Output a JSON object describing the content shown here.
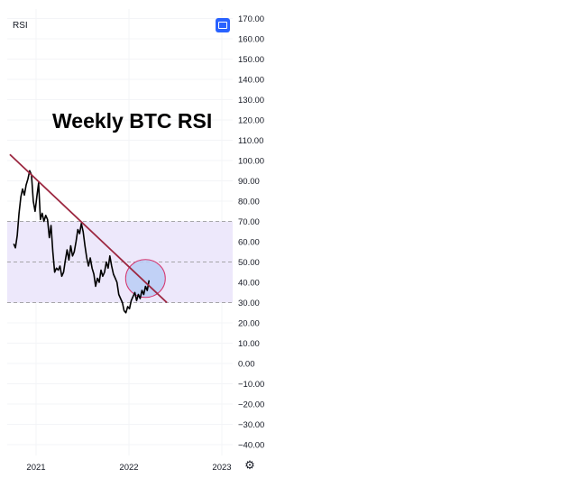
{
  "indicator": {
    "label": "RSI"
  },
  "annotation": {
    "title": "Weekly BTC RSI"
  },
  "icons": {
    "maximize": "maximize-icon",
    "settings": "gear-icon"
  },
  "colors": {
    "rsi_line": "#000000",
    "trendline": "#9c2740",
    "band_fill": "#ede8fb",
    "highlight_fill": "#b9cdf5",
    "highlight_stroke": "#d6336c",
    "accent": "#2962ff"
  },
  "chart_data": {
    "type": "line",
    "title": "Weekly BTC RSI",
    "ylabel": "",
    "xlabel": "",
    "ylim": [
      -45,
      172
    ],
    "y_ticks": [
      "170.00",
      "160.00",
      "150.00",
      "140.00",
      "130.00",
      "120.00",
      "110.00",
      "100.00",
      "90.00",
      "80.00",
      "70.00",
      "60.00",
      "50.00",
      "40.00",
      "30.00",
      "20.00",
      "10.00",
      "0.00",
      "−10.00",
      "−20.00",
      "−30.00",
      "−40.00"
    ],
    "x_ticks": [
      "2021",
      "2022",
      "2023"
    ],
    "grid": true,
    "bands": [
      {
        "from": 30,
        "to": 70,
        "label": ""
      }
    ],
    "reference_lines": [
      30,
      50,
      70
    ],
    "series": [
      {
        "values": [
          {
            "x": "2020-10-05",
            "y": 59
          },
          {
            "x": "2020-10-12",
            "y": 57
          },
          {
            "x": "2020-10-19",
            "y": 63
          },
          {
            "x": "2020-10-26",
            "y": 74
          },
          {
            "x": "2020-11-02",
            "y": 82
          },
          {
            "x": "2020-11-09",
            "y": 86
          },
          {
            "x": "2020-11-16",
            "y": 83
          },
          {
            "x": "2020-11-23",
            "y": 88
          },
          {
            "x": "2020-11-30",
            "y": 91
          },
          {
            "x": "2020-12-07",
            "y": 95
          },
          {
            "x": "2020-12-14",
            "y": 93
          },
          {
            "x": "2020-12-21",
            "y": 80
          },
          {
            "x": "2020-12-28",
            "y": 75
          },
          {
            "x": "2021-01-04",
            "y": 82
          },
          {
            "x": "2021-01-11",
            "y": 89
          },
          {
            "x": "2021-01-18",
            "y": 71
          },
          {
            "x": "2021-01-25",
            "y": 74
          },
          {
            "x": "2021-02-01",
            "y": 70
          },
          {
            "x": "2021-02-08",
            "y": 73
          },
          {
            "x": "2021-02-15",
            "y": 71
          },
          {
            "x": "2021-02-22",
            "y": 62
          },
          {
            "x": "2021-03-01",
            "y": 68
          },
          {
            "x": "2021-03-08",
            "y": 55
          },
          {
            "x": "2021-03-15",
            "y": 45
          },
          {
            "x": "2021-03-22",
            "y": 47
          },
          {
            "x": "2021-03-29",
            "y": 46
          },
          {
            "x": "2021-04-05",
            "y": 48
          },
          {
            "x": "2021-04-12",
            "y": 43
          },
          {
            "x": "2021-04-19",
            "y": 45
          },
          {
            "x": "2021-04-26",
            "y": 51
          },
          {
            "x": "2021-05-03",
            "y": 56
          },
          {
            "x": "2021-05-10",
            "y": 51
          },
          {
            "x": "2021-05-17",
            "y": 58
          },
          {
            "x": "2021-05-24",
            "y": 53
          },
          {
            "x": "2021-05-31",
            "y": 55
          },
          {
            "x": "2021-06-07",
            "y": 60
          },
          {
            "x": "2021-06-14",
            "y": 66
          },
          {
            "x": "2021-06-21",
            "y": 64
          },
          {
            "x": "2021-06-28",
            "y": 69
          },
          {
            "x": "2021-07-05",
            "y": 65
          },
          {
            "x": "2021-07-12",
            "y": 58
          },
          {
            "x": "2021-07-19",
            "y": 52
          },
          {
            "x": "2021-07-26",
            "y": 48
          },
          {
            "x": "2021-08-02",
            "y": 52
          },
          {
            "x": "2021-08-09",
            "y": 47
          },
          {
            "x": "2021-08-16",
            "y": 44
          },
          {
            "x": "2021-08-23",
            "y": 38
          },
          {
            "x": "2021-08-30",
            "y": 42
          },
          {
            "x": "2021-09-06",
            "y": 40
          },
          {
            "x": "2021-09-13",
            "y": 46
          },
          {
            "x": "2021-09-20",
            "y": 43
          },
          {
            "x": "2021-09-27",
            "y": 45
          },
          {
            "x": "2021-10-04",
            "y": 50
          },
          {
            "x": "2021-10-11",
            "y": 47
          },
          {
            "x": "2021-10-18",
            "y": 53
          },
          {
            "x": "2021-10-25",
            "y": 48
          },
          {
            "x": "2021-11-01",
            "y": 44
          },
          {
            "x": "2021-11-08",
            "y": 42
          },
          {
            "x": "2021-11-15",
            "y": 40
          },
          {
            "x": "2021-11-22",
            "y": 34
          },
          {
            "x": "2021-11-29",
            "y": 32
          },
          {
            "x": "2021-12-06",
            "y": 30
          },
          {
            "x": "2021-12-13",
            "y": 26
          },
          {
            "x": "2021-12-20",
            "y": 25
          },
          {
            "x": "2021-12-27",
            "y": 28
          },
          {
            "x": "2022-01-03",
            "y": 27
          },
          {
            "x": "2022-01-10",
            "y": 31
          },
          {
            "x": "2022-01-17",
            "y": 33
          },
          {
            "x": "2022-01-24",
            "y": 35
          },
          {
            "x": "2022-01-31",
            "y": 31
          },
          {
            "x": "2022-02-07",
            "y": 34
          },
          {
            "x": "2022-02-14",
            "y": 32
          },
          {
            "x": "2022-02-21",
            "y": 36
          },
          {
            "x": "2022-02-28",
            "y": 34
          },
          {
            "x": "2022-03-07",
            "y": 38
          },
          {
            "x": "2022-03-14",
            "y": 36
          },
          {
            "x": "2022-03-21",
            "y": 41
          }
        ]
      }
    ],
    "trendline": {
      "from": {
        "x": "2020-09-20",
        "y": 103
      },
      "to": {
        "x": "2022-05-30",
        "y": 30
      }
    }
  }
}
